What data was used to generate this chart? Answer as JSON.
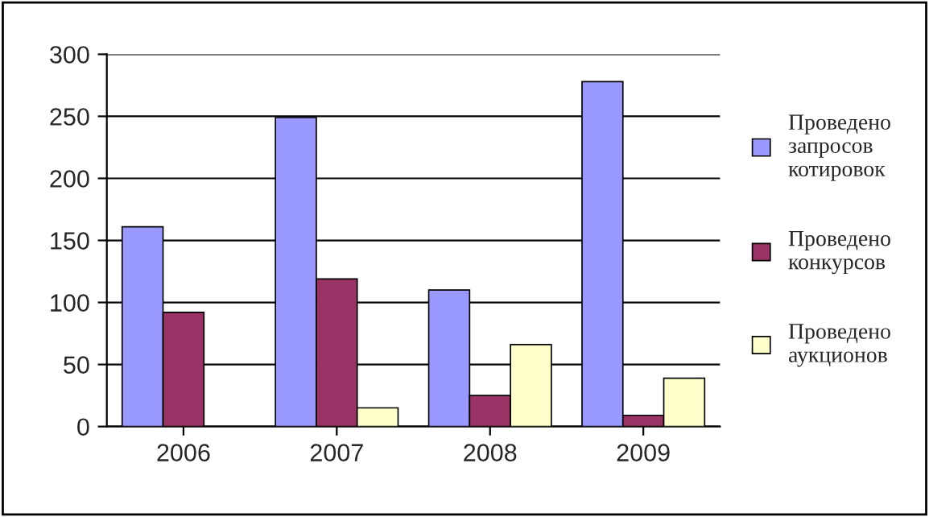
{
  "chart_data": {
    "type": "bar",
    "categories": [
      "2006",
      "2007",
      "2008",
      "2009"
    ],
    "series": [
      {
        "name": "Проведено\nзапросов\nкотировок",
        "color": "#9999ff",
        "values": [
          161,
          249,
          110,
          278
        ]
      },
      {
        "name": "Проведено\nконкурсов",
        "color": "#993366",
        "values": [
          92,
          119,
          25,
          9
        ]
      },
      {
        "name": "Проведено\nаукционов",
        "color": "#ffffcc",
        "values": [
          null,
          15,
          66,
          39
        ]
      }
    ],
    "ylim": [
      0,
      300
    ],
    "yticks": [
      0,
      50,
      100,
      150,
      200,
      250,
      300
    ],
    "grid": "y",
    "legend": "right"
  }
}
